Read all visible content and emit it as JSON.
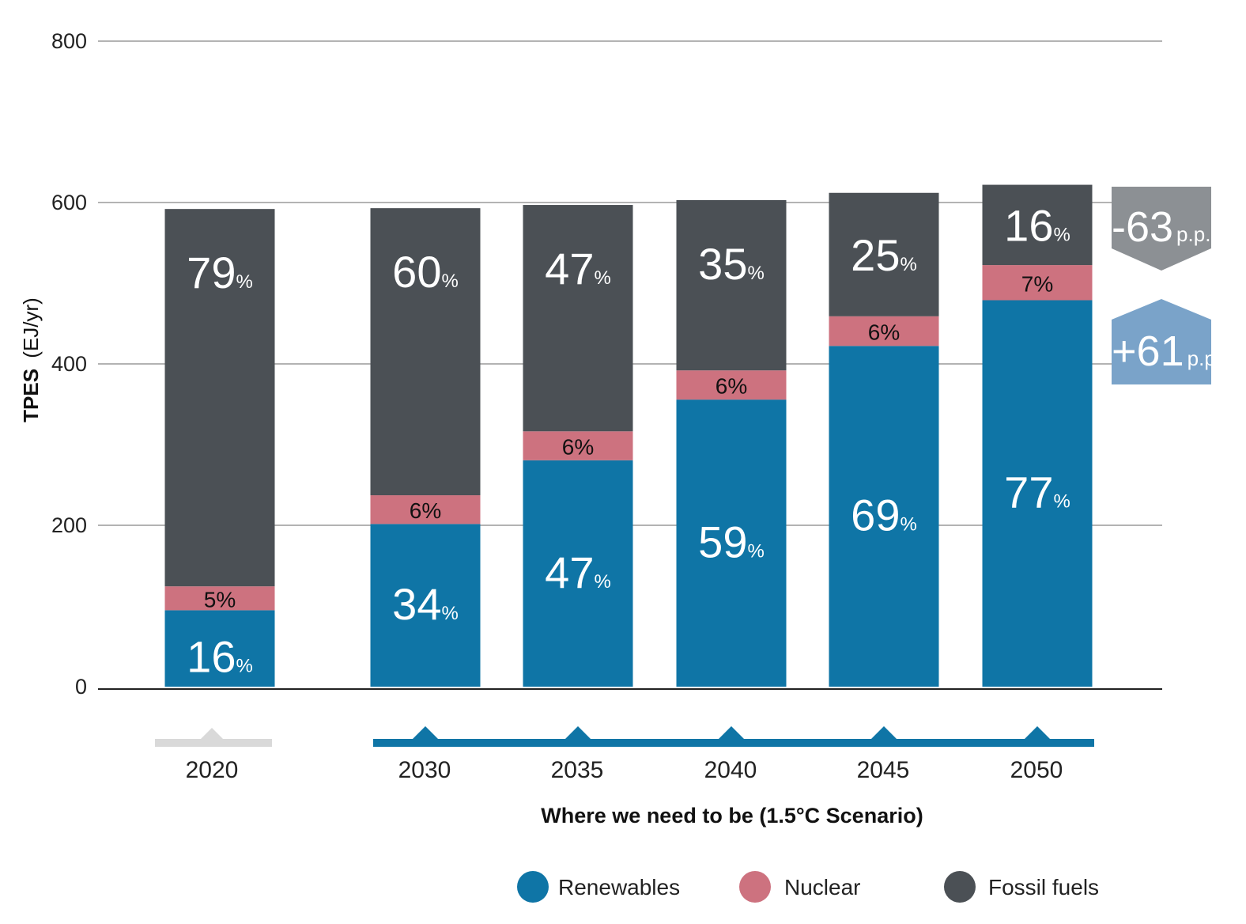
{
  "chart_data": {
    "type": "bar",
    "stacked": true,
    "ylabel_bold": "TPES",
    "ylabel_unit": "(EJ/yr)",
    "ylim": [
      0,
      800
    ],
    "yticks": [
      0,
      200,
      400,
      600,
      800
    ],
    "grid": true,
    "categories": [
      "2020",
      "2030",
      "2035",
      "2040",
      "2045",
      "2050"
    ],
    "totals": [
      592,
      593,
      597,
      603,
      612,
      622
    ],
    "series": [
      {
        "name": "Renewables",
        "color": "#0f75a6",
        "shares": [
          16,
          34,
          47,
          59,
          69,
          77
        ]
      },
      {
        "name": "Nuclear",
        "color": "#cd727f",
        "shares": [
          5,
          6,
          6,
          6,
          6,
          7
        ]
      },
      {
        "name": "Fossil fuels",
        "color": "#4b5055",
        "shares": [
          79,
          60,
          47,
          35,
          25,
          16
        ]
      }
    ],
    "percent_sign": "%",
    "timeline": {
      "baseline_color": "#d9d9d9",
      "scenario_color": "#0f75a6",
      "scenario_label": "Where we need to be (1.5°C Scenario)"
    },
    "changes": [
      {
        "value": "-63",
        "unit": "p.p.",
        "color": "#8c9094",
        "direction": "down"
      },
      {
        "value": "+61",
        "unit": "p.p.",
        "color": "#7aa3c9",
        "direction": "up"
      }
    ],
    "legend_position": "bottom"
  }
}
